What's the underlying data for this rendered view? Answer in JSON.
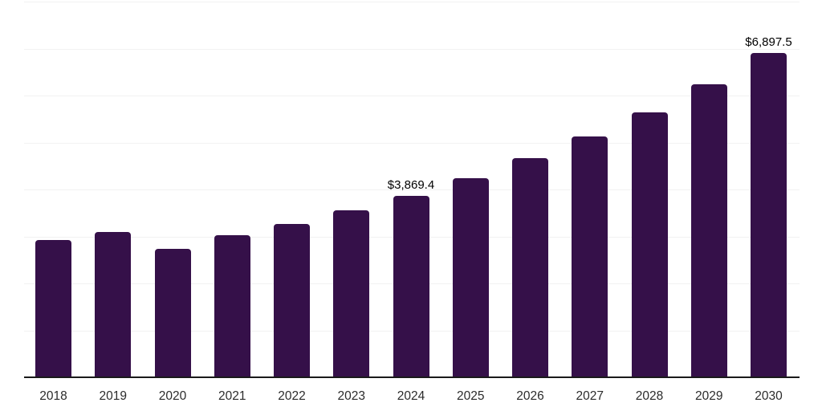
{
  "chart_data": {
    "type": "bar",
    "title": "",
    "xlabel": "",
    "ylabel": "",
    "categories": [
      "2018",
      "2019",
      "2020",
      "2021",
      "2022",
      "2023",
      "2024",
      "2025",
      "2026",
      "2027",
      "2028",
      "2029",
      "2030"
    ],
    "values": [
      2920,
      3090,
      2740,
      3030,
      3270,
      3550,
      3869.4,
      4240,
      4670,
      5130,
      5640,
      6240,
      6897.5
    ],
    "value_labels": {
      "2024": "$3,869.4",
      "2030": "$6,897.5"
    },
    "ylim": [
      0,
      8000
    ],
    "gridline_step": 1000,
    "grid": "horizontal-only",
    "legend": "none",
    "y_tick_labels_shown": false
  },
  "colors": {
    "bar": "#351049",
    "gridline": "#f2f2f2",
    "axis_line": "#1a1a1a",
    "tick_label": "#2b2b2b",
    "data_label": "#000000",
    "background": "#ffffff"
  }
}
